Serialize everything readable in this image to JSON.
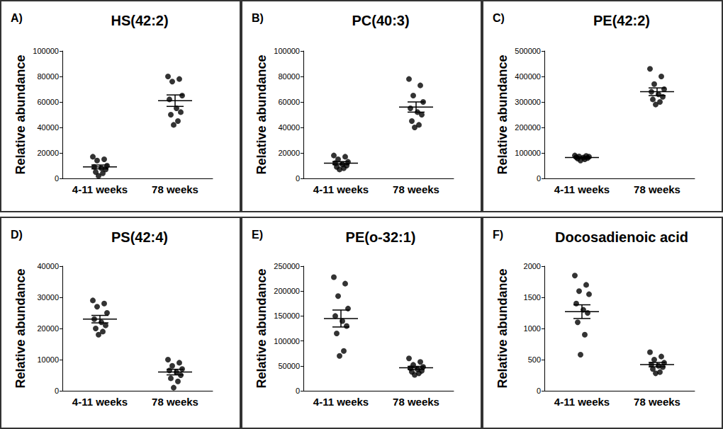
{
  "chart_data": [
    {
      "type": "scatter",
      "annotation": "A)",
      "title": "HS(42:2)",
      "y_label": "Relative abundance",
      "categories": [
        "4-11 weeks",
        "78 weeks"
      ],
      "values": [
        [
          17000,
          15000,
          14000,
          10000,
          9000,
          8000,
          7000,
          5000,
          4000,
          2000
        ],
        [
          80000,
          78000,
          76000,
          65000,
          62000,
          55000,
          52000,
          50000,
          45000,
          42000
        ]
      ],
      "means": [
        9000,
        61000
      ],
      "errors": [
        1500,
        4500
      ],
      "ylim": [
        0,
        100000
      ],
      "yticks": [
        0,
        20000,
        40000,
        60000,
        80000,
        100000
      ],
      "grid": false,
      "color": "#000000",
      "marker": "circle"
    },
    {
      "type": "scatter",
      "annotation": "B)",
      "title": "PC(40:3)",
      "y_label": "Relative abundance",
      "categories": [
        "4-11 weeks",
        "78 weeks"
      ],
      "values": [
        [
          18000,
          17000,
          15000,
          13000,
          12000,
          11000,
          10000,
          9000,
          8000,
          7000
        ],
        [
          78000,
          73000,
          65000,
          60000,
          55000,
          52000,
          50000,
          45000,
          42000,
          40000
        ]
      ],
      "means": [
        12000,
        56000
      ],
      "errors": [
        1200,
        4000
      ],
      "ylim": [
        0,
        100000
      ],
      "yticks": [
        0,
        20000,
        40000,
        60000,
        80000,
        100000
      ],
      "grid": false,
      "color": "#000000",
      "marker": "circle"
    },
    {
      "type": "scatter",
      "annotation": "C)",
      "title": "PE(42:2)",
      "y_label": "Relative abundance",
      "categories": [
        "4-11 weeks",
        "78 weeks"
      ],
      "values": [
        [
          90000,
          88000,
          86000,
          85000,
          83000,
          82000,
          80000,
          78000,
          75000,
          70000
        ],
        [
          430000,
          400000,
          370000,
          350000,
          340000,
          330000,
          320000,
          310000,
          300000,
          290000
        ]
      ],
      "means": [
        82000,
        340000
      ],
      "errors": [
        2500,
        15000
      ],
      "ylim": [
        0,
        500000
      ],
      "yticks": [
        0,
        100000,
        200000,
        300000,
        400000,
        500000
      ],
      "grid": false,
      "color": "#000000",
      "marker": "circle"
    },
    {
      "type": "scatter",
      "annotation": "D)",
      "title": "PS(42:4)",
      "y_label": "Relative abundance",
      "categories": [
        "4-11 weeks",
        "78 weeks"
      ],
      "values": [
        [
          29000,
          28000,
          27000,
          25000,
          23000,
          22000,
          21000,
          20000,
          19000,
          18000
        ],
        [
          10000,
          9000,
          8000,
          7000,
          6500,
          6000,
          5000,
          4000,
          3000,
          1000
        ]
      ],
      "means": [
        23000,
        6000
      ],
      "errors": [
        1200,
        900
      ],
      "ylim": [
        0,
        40000
      ],
      "yticks": [
        0,
        10000,
        20000,
        30000,
        40000
      ],
      "grid": false,
      "color": "#000000",
      "marker": "circle"
    },
    {
      "type": "scatter",
      "annotation": "E)",
      "title": "PE(o-32:1)",
      "y_label": "Relative abundance",
      "categories": [
        "4-11 weeks",
        "78 weeks"
      ],
      "values": [
        [
          228000,
          215000,
          190000,
          165000,
          150000,
          140000,
          130000,
          115000,
          80000,
          70000
        ],
        [
          65000,
          58000,
          52000,
          48000,
          45000,
          43000,
          40000,
          38000,
          35000,
          32000
        ]
      ],
      "means": [
        145000,
        46000
      ],
      "errors": [
        17000,
        3000
      ],
      "ylim": [
        0,
        250000
      ],
      "yticks": [
        0,
        50000,
        100000,
        150000,
        200000,
        250000
      ],
      "grid": false,
      "color": "#000000",
      "marker": "circle"
    },
    {
      "type": "scatter",
      "annotation": "F)",
      "title": "Docosadienoic acid",
      "y_label": "Relative abundance",
      "categories": [
        "4-11 weeks",
        "78 weeks"
      ],
      "values": [
        [
          1850,
          1700,
          1600,
          1550,
          1400,
          1300,
          1250,
          1100,
          900,
          580
        ],
        [
          620,
          550,
          500,
          450,
          420,
          400,
          380,
          350,
          300,
          280
        ]
      ],
      "means": [
        1270,
        420
      ],
      "errors": [
        110,
        35
      ],
      "ylim": [
        0,
        2000
      ],
      "yticks": [
        0,
        500,
        1000,
        1500,
        2000
      ],
      "grid": false,
      "color": "#000000",
      "marker": "circle"
    }
  ]
}
